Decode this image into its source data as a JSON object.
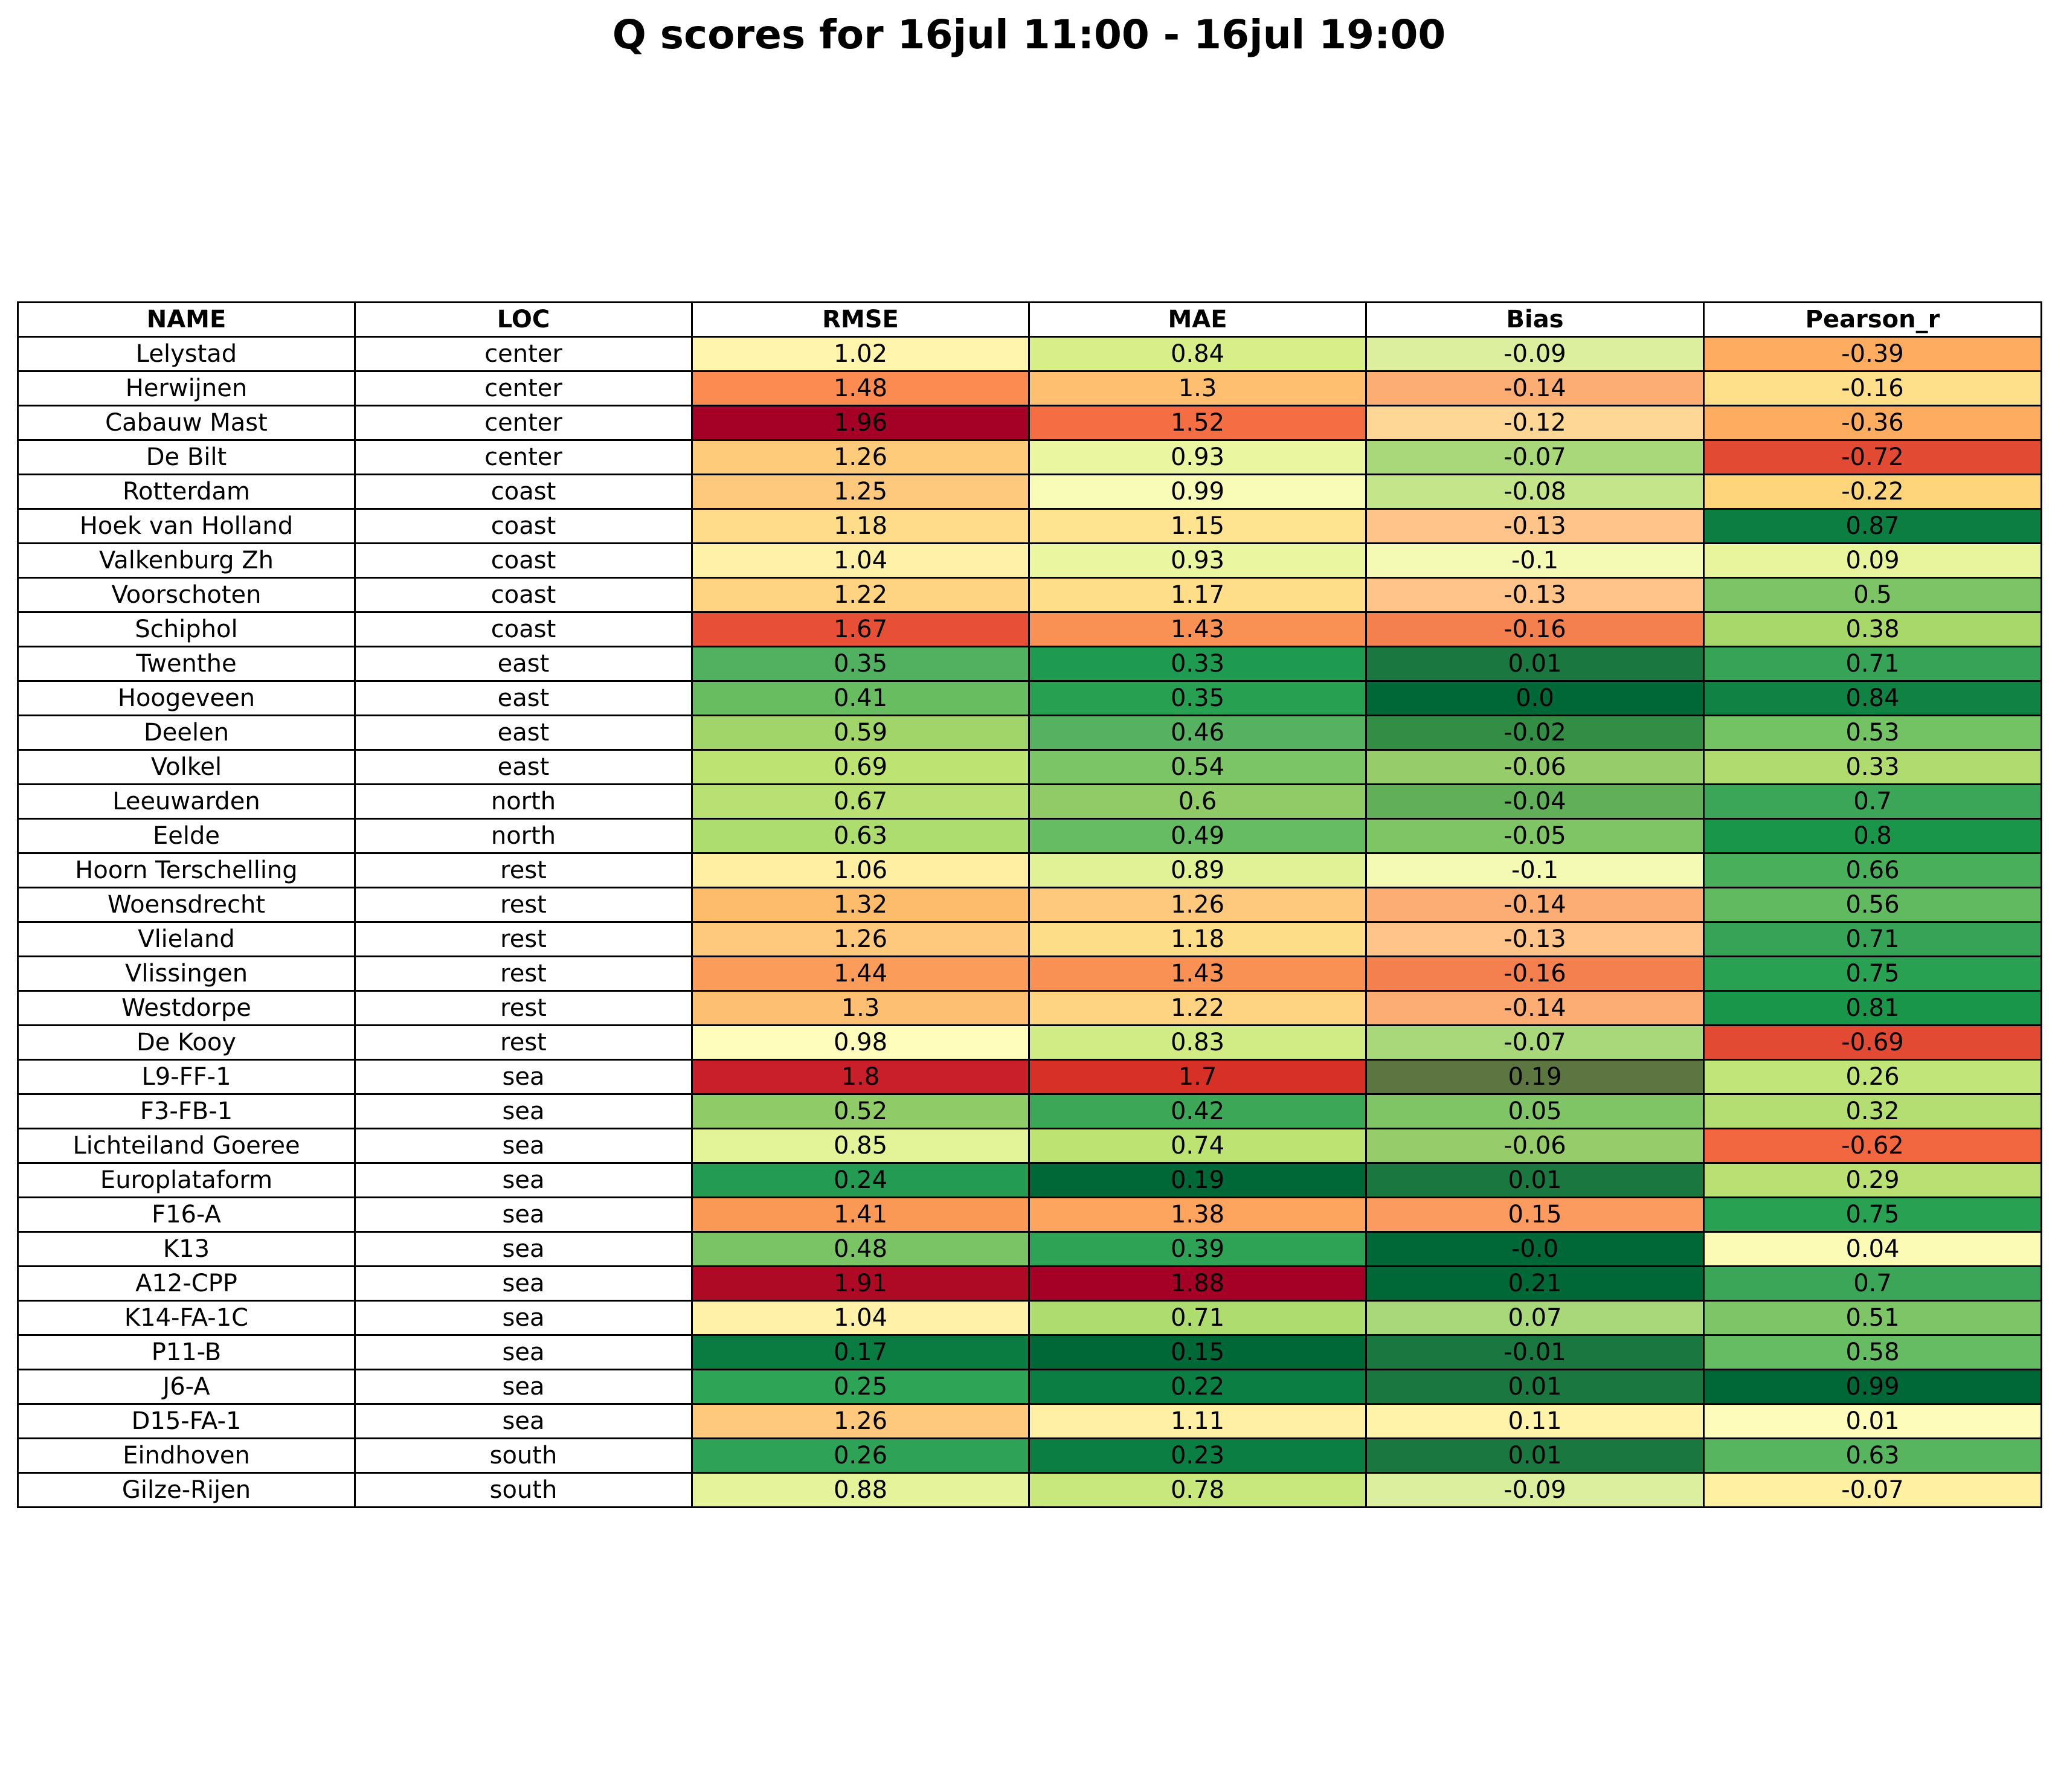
{
  "chart_data": {
    "type": "table",
    "title": "Q scores for 16jul 11:00 - 16jul 19:00",
    "columns": [
      "NAME",
      "LOC",
      "RMSE",
      "MAE",
      "Bias",
      "Pearson_r"
    ],
    "rows": [
      {
        "name": "Lelystad",
        "loc": "center",
        "rmse": "1.02",
        "mae": "0.84",
        "bias": "-0.09",
        "pearson_r": "-0.39"
      },
      {
        "name": "Herwijnen",
        "loc": "center",
        "rmse": "1.48",
        "mae": "1.3",
        "bias": "-0.14",
        "pearson_r": "-0.16"
      },
      {
        "name": "Cabauw Mast",
        "loc": "center",
        "rmse": "1.96",
        "mae": "1.52",
        "bias": "-0.12",
        "pearson_r": "-0.36"
      },
      {
        "name": "De Bilt",
        "loc": "center",
        "rmse": "1.26",
        "mae": "0.93",
        "bias": "-0.07",
        "pearson_r": "-0.72"
      },
      {
        "name": "Rotterdam",
        "loc": "coast",
        "rmse": "1.25",
        "mae": "0.99",
        "bias": "-0.08",
        "pearson_r": "-0.22"
      },
      {
        "name": "Hoek van Holland",
        "loc": "coast",
        "rmse": "1.18",
        "mae": "1.15",
        "bias": "-0.13",
        "pearson_r": "0.87"
      },
      {
        "name": "Valkenburg Zh",
        "loc": "coast",
        "rmse": "1.04",
        "mae": "0.93",
        "bias": "-0.1",
        "pearson_r": "0.09"
      },
      {
        "name": "Voorschoten",
        "loc": "coast",
        "rmse": "1.22",
        "mae": "1.17",
        "bias": "-0.13",
        "pearson_r": "0.5"
      },
      {
        "name": "Schiphol",
        "loc": "coast",
        "rmse": "1.67",
        "mae": "1.43",
        "bias": "-0.16",
        "pearson_r": "0.38"
      },
      {
        "name": "Twenthe",
        "loc": "east",
        "rmse": "0.35",
        "mae": "0.33",
        "bias": "0.01",
        "pearson_r": "0.71"
      },
      {
        "name": "Hoogeveen",
        "loc": "east",
        "rmse": "0.41",
        "mae": "0.35",
        "bias": "0.0",
        "pearson_r": "0.84"
      },
      {
        "name": "Deelen",
        "loc": "east",
        "rmse": "0.59",
        "mae": "0.46",
        "bias": "-0.02",
        "pearson_r": "0.53"
      },
      {
        "name": "Volkel",
        "loc": "east",
        "rmse": "0.69",
        "mae": "0.54",
        "bias": "-0.06",
        "pearson_r": "0.33"
      },
      {
        "name": "Leeuwarden",
        "loc": "north",
        "rmse": "0.67",
        "mae": "0.6",
        "bias": "-0.04",
        "pearson_r": "0.7"
      },
      {
        "name": "Eelde",
        "loc": "north",
        "rmse": "0.63",
        "mae": "0.49",
        "bias": "-0.05",
        "pearson_r": "0.8"
      },
      {
        "name": "Hoorn Terschelling",
        "loc": "rest",
        "rmse": "1.06",
        "mae": "0.89",
        "bias": "-0.1",
        "pearson_r": "0.66"
      },
      {
        "name": "Woensdrecht",
        "loc": "rest",
        "rmse": "1.32",
        "mae": "1.26",
        "bias": "-0.14",
        "pearson_r": "0.56"
      },
      {
        "name": "Vlieland",
        "loc": "rest",
        "rmse": "1.26",
        "mae": "1.18",
        "bias": "-0.13",
        "pearson_r": "0.71"
      },
      {
        "name": "Vlissingen",
        "loc": "rest",
        "rmse": "1.44",
        "mae": "1.43",
        "bias": "-0.16",
        "pearson_r": "0.75"
      },
      {
        "name": "Westdorpe",
        "loc": "rest",
        "rmse": "1.3",
        "mae": "1.22",
        "bias": "-0.14",
        "pearson_r": "0.81"
      },
      {
        "name": "De Kooy",
        "loc": "rest",
        "rmse": "0.98",
        "mae": "0.83",
        "bias": "-0.07",
        "pearson_r": "-0.69"
      },
      {
        "name": "L9-FF-1",
        "loc": "sea",
        "rmse": "1.8",
        "mae": "1.7",
        "bias": "0.19",
        "pearson_r": "0.26"
      },
      {
        "name": "F3-FB-1",
        "loc": "sea",
        "rmse": "0.52",
        "mae": "0.42",
        "bias": "0.05",
        "pearson_r": "0.32"
      },
      {
        "name": "Lichteiland Goeree",
        "loc": "sea",
        "rmse": "0.85",
        "mae": "0.74",
        "bias": "-0.06",
        "pearson_r": "-0.62"
      },
      {
        "name": "Europlataform",
        "loc": "sea",
        "rmse": "0.24",
        "mae": "0.19",
        "bias": "0.01",
        "pearson_r": "0.29"
      },
      {
        "name": "F16-A",
        "loc": "sea",
        "rmse": "1.41",
        "mae": "1.38",
        "bias": "0.15",
        "pearson_r": "0.75"
      },
      {
        "name": "K13",
        "loc": "sea",
        "rmse": "0.48",
        "mae": "0.39",
        "bias": "-0.0",
        "pearson_r": "0.04"
      },
      {
        "name": "A12-CPP",
        "loc": "sea",
        "rmse": "1.91",
        "mae": "1.88",
        "bias": "0.21",
        "pearson_r": "0.7"
      },
      {
        "name": "K14-FA-1C",
        "loc": "sea",
        "rmse": "1.04",
        "mae": "0.71",
        "bias": "0.07",
        "pearson_r": "0.51"
      },
      {
        "name": "P11-B",
        "loc": "sea",
        "rmse": "0.17",
        "mae": "0.15",
        "bias": "-0.01",
        "pearson_r": "0.58"
      },
      {
        "name": "J6-A",
        "loc": "sea",
        "rmse": "0.25",
        "mae": "0.22",
        "bias": "0.01",
        "pearson_r": "0.99"
      },
      {
        "name": "D15-FA-1",
        "loc": "sea",
        "rmse": "1.26",
        "mae": "1.11",
        "bias": "0.11",
        "pearson_r": "0.01"
      },
      {
        "name": "Eindhoven",
        "loc": "south",
        "rmse": "0.26",
        "mae": "0.23",
        "bias": "0.01",
        "pearson_r": "0.63"
      },
      {
        "name": "Gilze-Rijen",
        "loc": "south",
        "rmse": "0.88",
        "mae": "0.78",
        "bias": "-0.09",
        "pearson_r": "-0.07"
      }
    ],
    "colors": {
      "rmse": [
        "#fff5ac",
        "#fb8b50",
        "#a50026",
        "#fecb7a",
        "#fec97c",
        "#fedc89",
        "#fff2a8",
        "#fed382",
        "#e75037",
        "#51b160",
        "#68bd61",
        "#a2d569",
        "#bde373",
        "#b8e072",
        "#addc6f",
        "#ffefa3",
        "#fdbb6c",
        "#fec97c",
        "#fb9c5a",
        "#fdc072",
        "#fefdbb",
        "#c91f2a",
        "#8fcb66",
        "#e3f398",
        "#249b53",
        "#fa9955",
        "#7ac466",
        "#ae0a26",
        "#fff2a8",
        "#0a7c42",
        "#2da456",
        "#fec97c",
        "#2ea256",
        "#e5f49a"
      ],
      "mae": [
        "#d8ee88",
        "#fec070",
        "#f46d43",
        "#ebf6a0",
        "#f8fcb6",
        "#fee491",
        "#ebf6a0",
        "#fede89",
        "#f99155",
        "#1f9b51",
        "#27a052",
        "#56b261",
        "#7cc566",
        "#90cb67",
        "#66bc62",
        "#e0f295",
        "#fec97c",
        "#fedd89",
        "#f99155",
        "#fed382",
        "#d2ec85",
        "#d73027",
        "#3ba757",
        "#bde373",
        "#006837",
        "#fda45e",
        "#2ea356",
        "#a50026",
        "#afdc6f",
        "#006837",
        "#0a7e43",
        "#fff0a6",
        "#0a7e43",
        "#c8e77d"
      ],
      "bias": [
        "#dbef9f",
        "#fcad74",
        "#fed797",
        "#a9d87a",
        "#c5e58b",
        "#fec48a",
        "#f4f9b4",
        "#fec48a",
        "#f5804f",
        "#1a7740",
        "#006837",
        "#348d45",
        "#96cd6a",
        "#62af59",
        "#7fc465",
        "#f4f9b4",
        "#fcad74",
        "#fec48a",
        "#f5804f",
        "#fcad74",
        "#a9d87a",
        "#5d7641",
        "#7fc465",
        "#96cd6a",
        "#1a7740",
        "#fc9b60",
        "#006837",
        "#006837",
        "#a9d87a",
        "#1a7740",
        "#1a7740",
        "#fff2a9",
        "#1a7740",
        "#dbef9f"
      ],
      "pearson_r": [
        "#fdac60",
        "#fee08b",
        "#fdac60",
        "#e34a33",
        "#fed57a",
        "#0c7e41",
        "#e9f59d",
        "#7cc466",
        "#a7d869",
        "#36a356",
        "#0f8244",
        "#73c264",
        "#b0dc6f",
        "#3ba657",
        "#199649",
        "#4aaf5b",
        "#62ba60",
        "#36a356",
        "#29a152",
        "#199649",
        "#e34a33",
        "#c2e57a",
        "#b5de72",
        "#f26740",
        "#bae074",
        "#29a152",
        "#fbfbb5",
        "#3ba657",
        "#7dc566",
        "#66bc62",
        "#006837",
        "#fefcba",
        "#57b560",
        "#fff0a2"
      ]
    }
  }
}
